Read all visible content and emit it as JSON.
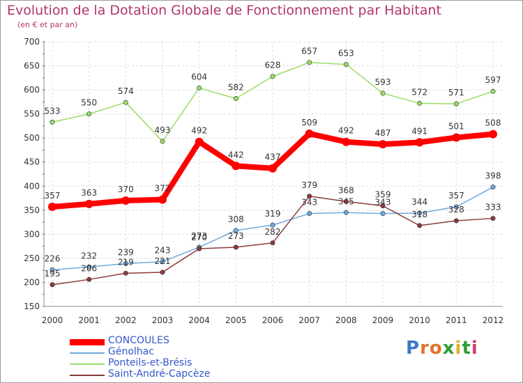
{
  "header": {
    "title": "Evolution de la Dotation Globale de Fonctionnement par Habitant",
    "subtitle": "(en € et par an)"
  },
  "logo": {
    "text": "Proxiti"
  },
  "chart_data": {
    "type": "line",
    "title": "Evolution de la Dotation Globale de Fonctionnement par Habitant",
    "subtitle": "(en € et par an)",
    "x": [
      "2000",
      "2001",
      "2002",
      "2003",
      "2004",
      "2005",
      "2006",
      "2007",
      "2008",
      "2009",
      "2010",
      "2011",
      "2012"
    ],
    "ylim": [
      150,
      700
    ],
    "yticks": [
      150,
      200,
      250,
      300,
      350,
      400,
      450,
      500,
      550,
      600,
      650,
      700
    ],
    "grid": true,
    "legend_position": "bottom-left",
    "series": [
      {
        "name": "CONCOULES",
        "color": "#ff0000",
        "emphasis": true,
        "values": [
          357,
          363,
          370,
          372,
          492,
          442,
          437,
          509,
          492,
          487,
          491,
          501,
          508
        ]
      },
      {
        "name": "Génolhac",
        "color": "#6fa8dc",
        "values": [
          226,
          232,
          239,
          243,
          273,
          308,
          319,
          343,
          345,
          343,
          344,
          357,
          398
        ]
      },
      {
        "name": "Ponteils-et-Brésis",
        "color": "#99dd66",
        "values": [
          533,
          550,
          574,
          493,
          604,
          582,
          628,
          657,
          653,
          593,
          572,
          571,
          597
        ]
      },
      {
        "name": "Saint-André-Capcèze",
        "color": "#8b3a3a",
        "values": [
          195,
          206,
          219,
          221,
          270,
          273,
          282,
          379,
          368,
          359,
          318,
          328,
          333
        ]
      }
    ]
  }
}
